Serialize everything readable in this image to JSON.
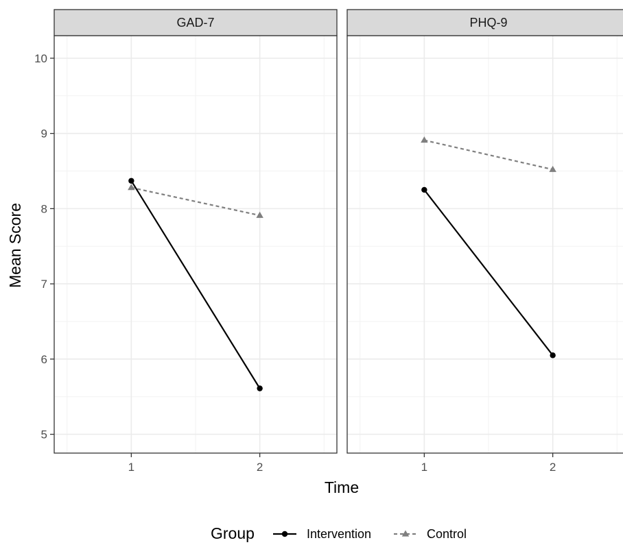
{
  "chart_data": {
    "type": "line",
    "facets": [
      {
        "label": "GAD-7",
        "series": [
          {
            "name": "Intervention",
            "x": [
              1,
              2
            ],
            "values": [
              8.37,
              5.61
            ]
          },
          {
            "name": "Control",
            "x": [
              1,
              2
            ],
            "values": [
              8.28,
              7.91
            ]
          }
        ]
      },
      {
        "label": "PHQ-9",
        "series": [
          {
            "name": "Intervention",
            "x": [
              1,
              2
            ],
            "values": [
              8.25,
              6.05
            ]
          },
          {
            "name": "Control",
            "x": [
              1,
              2
            ],
            "values": [
              8.91,
              8.52
            ]
          }
        ]
      }
    ],
    "x_ticks": [
      1,
      2
    ],
    "xlim": [
      0.4,
      2.6
    ],
    "y_ticks": [
      5,
      6,
      7,
      8,
      9,
      10
    ],
    "ylim": [
      4.75,
      10.3
    ],
    "xlabel": "Time",
    "ylabel": "Mean Score",
    "grid": true,
    "legend": {
      "title": "Group",
      "position": "bottom",
      "entries": [
        {
          "name": "Intervention",
          "color": "#000000",
          "line": "solid",
          "marker": "circle"
        },
        {
          "name": "Control",
          "color": "#7f7f7f",
          "line": "dashed",
          "marker": "triangle"
        }
      ]
    },
    "colors": {
      "Intervention": "#000000",
      "Control": "#7f7f7f",
      "strip_fill": "#d9d9d9",
      "grid_major": "#ebebeb",
      "grid_minor": "#f2f2f2",
      "border": "#333333"
    }
  }
}
